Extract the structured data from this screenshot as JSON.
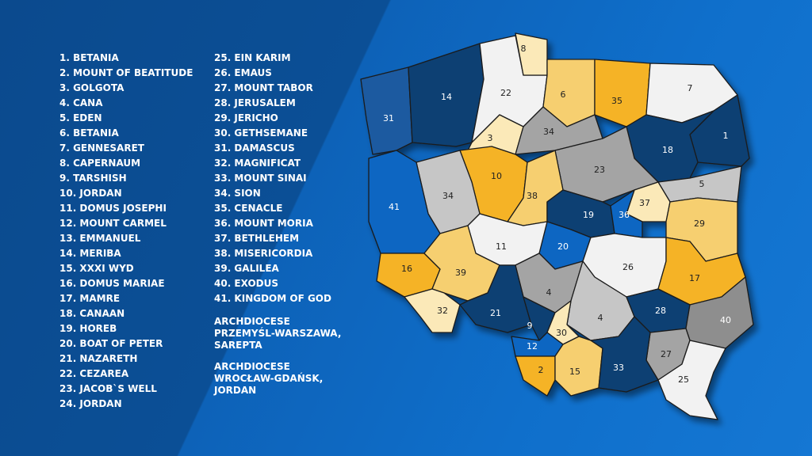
{
  "legend": {
    "column_1": [
      "1. BETANIA",
      "2. MOUNT OF BEATITUDE",
      "3. GOLGOTA",
      "4. CANA",
      "5. EDEN",
      "6. BETANIA",
      "7. GENNESARET",
      "8. CAPERNAUM",
      "9. TARSHISH",
      "10. JORDAN",
      "11. DOMUS JOSEPHI",
      "12. MOUNT CARMEL",
      "13. EMMANUEL",
      "14. MERIBA",
      "15. XXXI WYD",
      "16. DOMUS MARIAE",
      "17. MAMRE",
      "18. CANAAN",
      "19. HOREB",
      "20. BOAT OF PETER",
      "21. NAZARETH",
      "22. CEZAREA",
      "23. JACOB`S WELL",
      "24. JORDAN"
    ],
    "column_2": [
      "25. EIN KARIM",
      "26. EMAUS",
      "27. MOUNT TABOR",
      "28. JERUSALEM",
      "29. JERICHO",
      "30. GETHSEMANE",
      "31. DAMASCUS",
      "32. MAGNIFICAT",
      "33. MOUNT SINAI",
      "34. SION",
      "35. CENACLE",
      "36. MOUNT MORIA",
      "37. BETHLEHEM",
      "38. MISERICORDIA",
      "39. GALILEA",
      "40. EXODUS",
      "41. KINGDOM OF GOD"
    ],
    "notes": [
      [
        "ARCHDIOCESE",
        "PRZEMYŚL-WARSZAWA,",
        "SAREPTA"
      ],
      [
        "ARCHDIOCESE",
        "WROCŁAW-GDAŃSK,",
        "JORDAN"
      ]
    ]
  },
  "map": {
    "regions": [
      "31",
      "14",
      "22",
      "8",
      "6",
      "35",
      "7",
      "1",
      "18",
      "3",
      "34",
      "23",
      "10",
      "38",
      "34",
      "41",
      "5",
      "37",
      "29",
      "19",
      "36",
      "20",
      "11",
      "26",
      "17",
      "16",
      "39",
      "4",
      "32",
      "21",
      "4",
      "28",
      "40",
      "9",
      "30",
      "12",
      "27",
      "2",
      "15",
      "33",
      "25"
    ]
  }
}
